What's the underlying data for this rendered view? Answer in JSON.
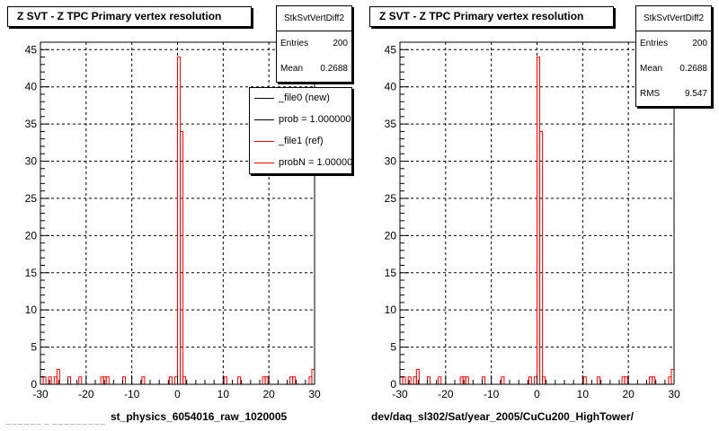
{
  "panels": [
    {
      "title": "Z SVT - Z TPC Primary vertex resolution",
      "stats": {
        "name": "StkSvtVertDiff2",
        "rows": [
          {
            "label": "Entries",
            "value": "200"
          },
          {
            "label": "Mean",
            "value": "0.2688"
          }
        ]
      },
      "legend": [
        {
          "label": "_file0 (new)",
          "color": "#000000"
        },
        {
          "label": "prob = 1.000000",
          "color": "#000000"
        },
        {
          "label": "_file1 (ref)",
          "color": "#ff0000"
        },
        {
          "label": "probN = 1.000000",
          "color": "#ff0000"
        }
      ],
      "footer": "st_physics_6054016_raw_1020005"
    },
    {
      "title": "Z SVT - Z TPC Primary vertex resolution",
      "stats": {
        "name": "StkSvtVertDiff2",
        "rows": [
          {
            "label": "Entries",
            "value": "200"
          },
          {
            "label": "Mean",
            "value": "0.2688"
          },
          {
            "label": "RMS",
            "value": "9.547"
          }
        ]
      },
      "legend": [],
      "footer": "dev/daq_sl302/Sat/year_2005/CuCu200_HighTower/"
    }
  ],
  "chart_data": [
    {
      "type": "bar",
      "title": "Z SVT - Z TPC Primary vertex resolution",
      "xlim": [
        -30,
        30
      ],
      "ylim": [
        0,
        46
      ],
      "xticks": [
        -30,
        -20,
        -10,
        0,
        10,
        20,
        30
      ],
      "yticks": [
        0,
        5,
        10,
        15,
        20,
        25,
        30,
        35,
        40,
        45
      ],
      "grid": true,
      "bin_width": 0.6,
      "series": [
        {
          "name": "_file1 (ref)",
          "color": "#ff0000",
          "bins": [
            [
              -30,
              1
            ],
            [
              -29.4,
              1
            ],
            [
              -28.2,
              1
            ],
            [
              -27,
              1
            ],
            [
              -26.4,
              2
            ],
            [
              -24,
              1
            ],
            [
              -21.6,
              1
            ],
            [
              -16.8,
              1
            ],
            [
              -16.2,
              1
            ],
            [
              -15.6,
              1
            ],
            [
              -12,
              1
            ],
            [
              -7.8,
              1
            ],
            [
              -1.8,
              1
            ],
            [
              -0.6,
              1
            ],
            [
              0,
              44
            ],
            [
              0.6,
              34
            ],
            [
              1.2,
              1
            ],
            [
              10.2,
              1
            ],
            [
              13.2,
              1
            ],
            [
              18.6,
              1
            ],
            [
              19.2,
              1
            ],
            [
              24.6,
              1
            ],
            [
              25.2,
              1
            ],
            [
              28.8,
              1
            ],
            [
              29.4,
              2
            ]
          ]
        }
      ]
    },
    {
      "type": "bar",
      "title": "Z SVT - Z TPC Primary vertex resolution",
      "xlim": [
        -30,
        30
      ],
      "ylim": [
        0,
        46
      ],
      "xticks": [
        -30,
        -20,
        -10,
        0,
        10,
        20,
        30
      ],
      "yticks": [
        0,
        5,
        10,
        15,
        20,
        25,
        30,
        35,
        40,
        45
      ],
      "grid": true,
      "bin_width": 0.6,
      "series": [
        {
          "name": "_file1 (ref)",
          "color": "#ff0000",
          "bins": [
            [
              -30,
              1
            ],
            [
              -29.4,
              1
            ],
            [
              -28.2,
              1
            ],
            [
              -27,
              1
            ],
            [
              -26.4,
              2
            ],
            [
              -24,
              1
            ],
            [
              -21.6,
              1
            ],
            [
              -16.8,
              1
            ],
            [
              -16.2,
              1
            ],
            [
              -15.6,
              1
            ],
            [
              -12,
              1
            ],
            [
              -7.8,
              1
            ],
            [
              -1.8,
              1
            ],
            [
              -0.6,
              1
            ],
            [
              0,
              44
            ],
            [
              0.6,
              34
            ],
            [
              1.2,
              1
            ],
            [
              10.2,
              1
            ],
            [
              13.2,
              1
            ],
            [
              18.6,
              1
            ],
            [
              19.2,
              1
            ],
            [
              24.6,
              1
            ],
            [
              25.2,
              1
            ],
            [
              28.8,
              1
            ],
            [
              29.4,
              2
            ]
          ]
        }
      ]
    }
  ]
}
